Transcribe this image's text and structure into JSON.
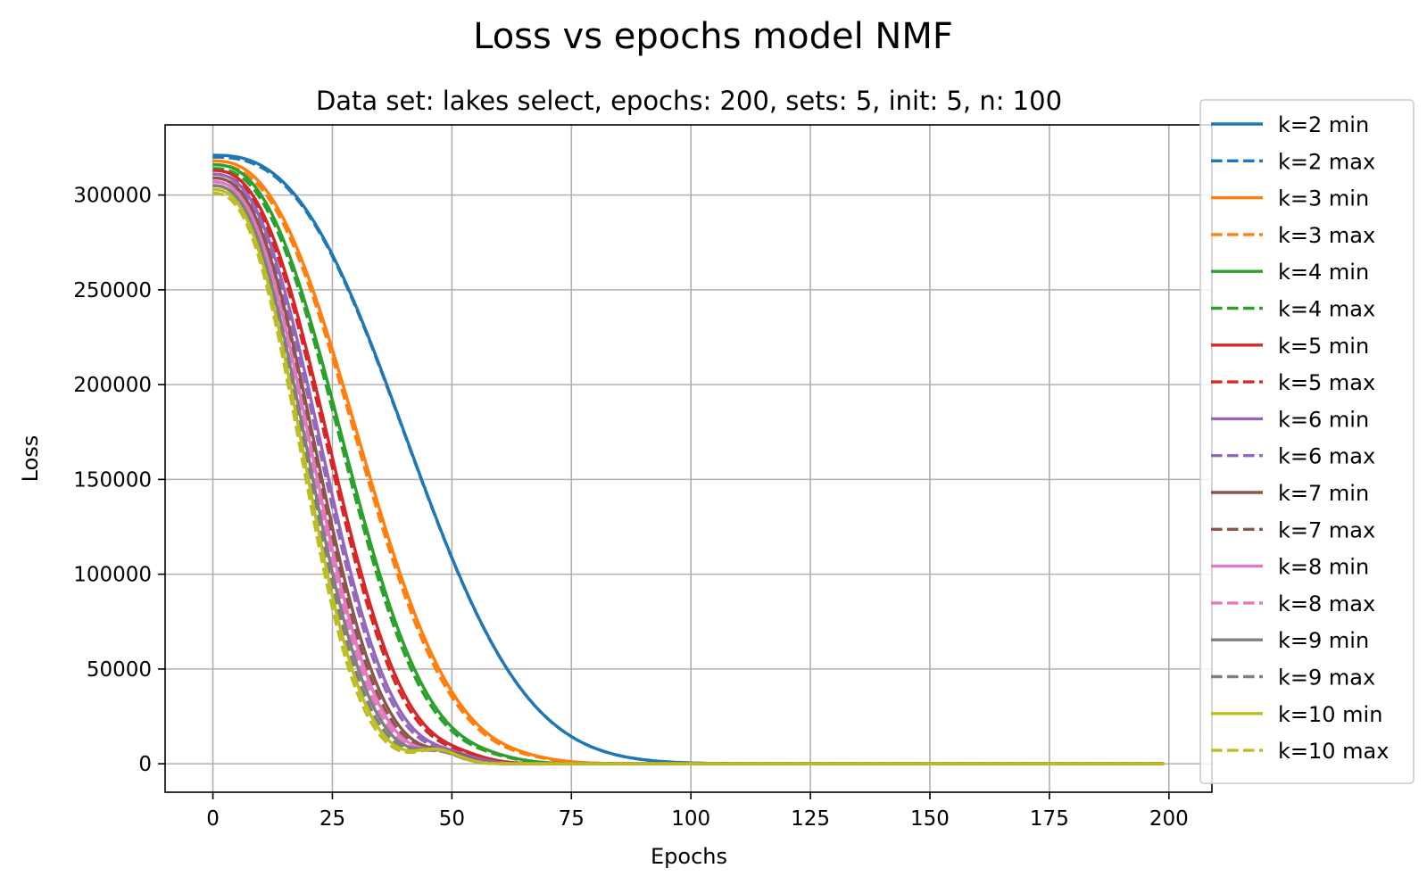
{
  "chart_data": {
    "type": "line",
    "suptitle": "Loss vs epochs model NMF",
    "title": "Data set:  lakes select, epochs: 200, sets: 5, init: 5, n: 100",
    "xlabel": "Epochs",
    "ylabel": "Loss",
    "xlim": [
      -10,
      209
    ],
    "ylim": [
      -15000,
      337000
    ],
    "xticks": [
      0,
      25,
      50,
      75,
      100,
      125,
      150,
      175,
      200
    ],
    "yticks": [
      0,
      50000,
      100000,
      150000,
      200000,
      250000,
      300000
    ],
    "grid": true,
    "legend_position": "right",
    "x": {
      "start": 0,
      "end": 199,
      "step": 1
    },
    "curve_model": "loss(epoch) = L0 * exp(-(epoch/tau)^p) + bump * exp(-((epoch - bump_center)/bump_width)^2)",
    "series": [
      {
        "name": "k=2 min",
        "color": "#1f77b4",
        "style": "solid",
        "L0": 321000,
        "tau": 48.5,
        "p": 2.6,
        "bump": 0,
        "bump_center": 0,
        "bump_width": 1
      },
      {
        "name": "k=2 max",
        "color": "#1f77b4",
        "style": "dashed",
        "L0": 320000,
        "tau": 48.5,
        "p": 2.6,
        "bump": 0,
        "bump_center": 0,
        "bump_width": 1
      },
      {
        "name": "k=3 min",
        "color": "#ff7f0e",
        "style": "solid",
        "L0": 318000,
        "tau": 37.0,
        "p": 2.5,
        "bump": 800,
        "bump_center": 66,
        "bump_width": 8
      },
      {
        "name": "k=3 max",
        "color": "#ff7f0e",
        "style": "dashed",
        "L0": 316000,
        "tau": 36.5,
        "p": 2.5,
        "bump": 800,
        "bump_center": 66,
        "bump_width": 8
      },
      {
        "name": "k=4 min",
        "color": "#2ca02c",
        "style": "solid",
        "L0": 316000,
        "tau": 33.0,
        "p": 2.5,
        "bump": 1500,
        "bump_center": 58,
        "bump_width": 8
      },
      {
        "name": "k=4 max",
        "color": "#2ca02c",
        "style": "dashed",
        "L0": 314000,
        "tau": 32.5,
        "p": 2.5,
        "bump": 1500,
        "bump_center": 58,
        "bump_width": 8
      },
      {
        "name": "k=5 min",
        "color": "#d62728",
        "style": "solid",
        "L0": 313000,
        "tau": 29.5,
        "p": 2.5,
        "bump": 2500,
        "bump_center": 52,
        "bump_width": 7
      },
      {
        "name": "k=5 max",
        "color": "#d62728",
        "style": "dashed",
        "L0": 311000,
        "tau": 29.0,
        "p": 2.5,
        "bump": 2500,
        "bump_center": 52,
        "bump_width": 7
      },
      {
        "name": "k=6 min",
        "color": "#9467bd",
        "style": "solid",
        "L0": 311000,
        "tau": 27.5,
        "p": 2.5,
        "bump": 3500,
        "bump_center": 50,
        "bump_width": 7
      },
      {
        "name": "k=6 max",
        "color": "#9467bd",
        "style": "dashed",
        "L0": 309000,
        "tau": 27.0,
        "p": 2.5,
        "bump": 3500,
        "bump_center": 50,
        "bump_width": 7
      },
      {
        "name": "k=7 min",
        "color": "#8c564b",
        "style": "solid",
        "L0": 309000,
        "tau": 26.0,
        "p": 2.5,
        "bump": 4500,
        "bump_center": 49,
        "bump_width": 6
      },
      {
        "name": "k=7 max",
        "color": "#8c564b",
        "style": "dashed",
        "L0": 307000,
        "tau": 25.5,
        "p": 2.5,
        "bump": 4500,
        "bump_center": 49,
        "bump_width": 6
      },
      {
        "name": "k=8 min",
        "color": "#e377c2",
        "style": "solid",
        "L0": 307000,
        "tau": 25.0,
        "p": 2.5,
        "bump": 5000,
        "bump_center": 48,
        "bump_width": 6
      },
      {
        "name": "k=8 max",
        "color": "#e377c2",
        "style": "dashed",
        "L0": 305000,
        "tau": 24.5,
        "p": 2.5,
        "bump": 5000,
        "bump_center": 48,
        "bump_width": 6
      },
      {
        "name": "k=9 min",
        "color": "#7f7f7f",
        "style": "solid",
        "L0": 305000,
        "tau": 24.0,
        "p": 2.5,
        "bump": 6000,
        "bump_center": 47,
        "bump_width": 6
      },
      {
        "name": "k=9 max",
        "color": "#7f7f7f",
        "style": "dashed",
        "L0": 303000,
        "tau": 23.5,
        "p": 2.5,
        "bump": 6000,
        "bump_center": 47,
        "bump_width": 6
      },
      {
        "name": "k=10 min",
        "color": "#bcbd22",
        "style": "solid",
        "L0": 303000,
        "tau": 23.0,
        "p": 2.5,
        "bump": 7000,
        "bump_center": 47,
        "bump_width": 6
      },
      {
        "name": "k=10 max",
        "color": "#bcbd22",
        "style": "dashed",
        "L0": 301000,
        "tau": 22.5,
        "p": 2.5,
        "bump": 7000,
        "bump_center": 47,
        "bump_width": 6
      }
    ]
  }
}
